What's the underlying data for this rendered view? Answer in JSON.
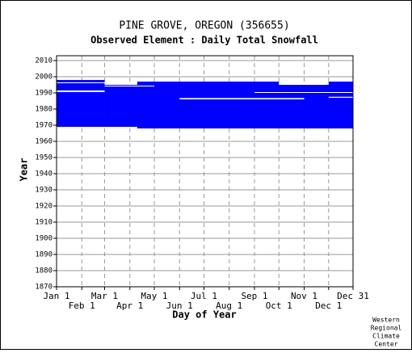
{
  "chart_data": {
    "type": "availability",
    "title": "PINE GROVE, OREGON   (356655)",
    "subtitle": "Observed Element : Daily Total Snowfall",
    "xlabel": "Day of Year",
    "ylabel": "Year",
    "credit": [
      "Western",
      "Regional",
      "Climate",
      "Center"
    ],
    "color": "#0000ff",
    "gap_color": "#ffffff",
    "grid": true,
    "xlim": [
      1,
      365
    ],
    "ylim": [
      1870,
      2013
    ],
    "xticks": [
      {
        "value": 1,
        "label": "Jan 1"
      },
      {
        "value": 32,
        "label": "Feb 1"
      },
      {
        "value": 60,
        "label": "Mar 1"
      },
      {
        "value": 91,
        "label": "Apr 1"
      },
      {
        "value": 121,
        "label": "May 1"
      },
      {
        "value": 152,
        "label": "Jun 1"
      },
      {
        "value": 182,
        "label": "Jul 1"
      },
      {
        "value": 213,
        "label": "Aug 1"
      },
      {
        "value": 244,
        "label": "Sep 1"
      },
      {
        "value": 274,
        "label": "Oct 1"
      },
      {
        "value": 305,
        "label": "Nov 1"
      },
      {
        "value": 335,
        "label": "Dec 1"
      },
      {
        "value": 365,
        "label": "Dec 31"
      }
    ],
    "yticks": [
      1870,
      1880,
      1890,
      1900,
      1910,
      1920,
      1930,
      1940,
      1950,
      1960,
      1970,
      1980,
      1990,
      2000,
      2010
    ],
    "blocks": [
      {
        "days": [
          1,
          60
        ],
        "years": [
          1969,
          1998
        ]
      },
      {
        "days": [
          60,
          365
        ],
        "years": [
          1969,
          1995
        ]
      },
      {
        "days": [
          100,
          365
        ],
        "years": [
          1968,
          1970
        ]
      },
      {
        "days": [
          100,
          274
        ],
        "years": [
          1995,
          1997
        ]
      },
      {
        "days": [
          335,
          365
        ],
        "years": [
          1995,
          1997
        ]
      }
    ],
    "gaps": [
      {
        "days": [
          1,
          60
        ],
        "years": [
          1996,
          1996.5
        ]
      },
      {
        "days": [
          1,
          60
        ],
        "years": [
          1990.5,
          1991.5
        ]
      },
      {
        "days": [
          60,
          121
        ],
        "years": [
          1994,
          1994.5
        ]
      },
      {
        "days": [
          152,
          305
        ],
        "years": [
          1986,
          1986.8
        ]
      },
      {
        "days": [
          244,
          365
        ],
        "years": [
          1990,
          1990.5
        ]
      },
      {
        "days": [
          335,
          365
        ],
        "years": [
          1987,
          1987.6
        ]
      }
    ]
  }
}
